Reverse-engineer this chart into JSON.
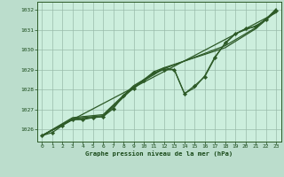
{
  "background_color": "#bbddcc",
  "plot_bg_color": "#cceedd",
  "grid_color": "#99bbaa",
  "line_color": "#2d5a27",
  "marker_color": "#2d5a27",
  "text_color": "#1a4a1a",
  "xlabel": "Graphe pression niveau de la mer (hPa)",
  "ylim": [
    1025.4,
    1032.4
  ],
  "xlim": [
    -0.5,
    23.5
  ],
  "yticks": [
    1026,
    1027,
    1028,
    1029,
    1030,
    1031,
    1032
  ],
  "xticks": [
    0,
    1,
    2,
    3,
    4,
    5,
    6,
    7,
    8,
    9,
    10,
    11,
    12,
    13,
    14,
    15,
    16,
    17,
    18,
    19,
    20,
    21,
    22,
    23
  ],
  "series": [
    {
      "x": [
        0,
        1,
        2,
        3,
        4,
        5,
        6,
        7,
        8,
        9,
        10,
        11,
        12,
        13,
        14,
        15,
        16,
        17,
        18,
        19,
        20,
        21,
        22,
        23
      ],
      "y": [
        1025.7,
        1025.85,
        1026.2,
        1026.5,
        1026.5,
        1026.6,
        1026.65,
        1027.05,
        1027.7,
        1028.05,
        1028.45,
        1028.85,
        1029.0,
        1029.0,
        1027.8,
        1028.2,
        1028.65,
        1029.6,
        1030.35,
        1030.8,
        1031.05,
        1031.15,
        1031.5,
        1031.95
      ],
      "has_markers": true,
      "lw": 0.9
    },
    {
      "x": [
        0,
        3,
        6,
        9,
        10,
        11,
        12,
        13,
        14,
        15,
        16,
        17,
        18,
        19,
        20,
        21,
        22,
        23
      ],
      "y": [
        1025.7,
        1026.5,
        1026.65,
        1028.1,
        1028.5,
        1028.9,
        1029.1,
        1029.0,
        1027.8,
        1028.1,
        1028.7,
        1029.65,
        1030.3,
        1030.8,
        1031.0,
        1031.2,
        1031.5,
        1032.05
      ],
      "has_markers": false,
      "lw": 0.9
    },
    {
      "x": [
        0,
        23
      ],
      "y": [
        1025.7,
        1031.85
      ],
      "has_markers": false,
      "lw": 0.9
    },
    {
      "x": [
        0,
        3,
        6,
        9,
        12,
        18,
        21,
        23
      ],
      "y": [
        1025.7,
        1026.55,
        1026.7,
        1028.15,
        1029.05,
        1030.2,
        1031.1,
        1032.0
      ],
      "has_markers": false,
      "lw": 0.9
    },
    {
      "x": [
        0,
        3,
        6,
        9,
        12,
        18,
        21,
        23
      ],
      "y": [
        1025.7,
        1026.6,
        1026.75,
        1028.2,
        1029.1,
        1030.1,
        1031.05,
        1031.92
      ],
      "has_markers": false,
      "lw": 0.9
    }
  ]
}
